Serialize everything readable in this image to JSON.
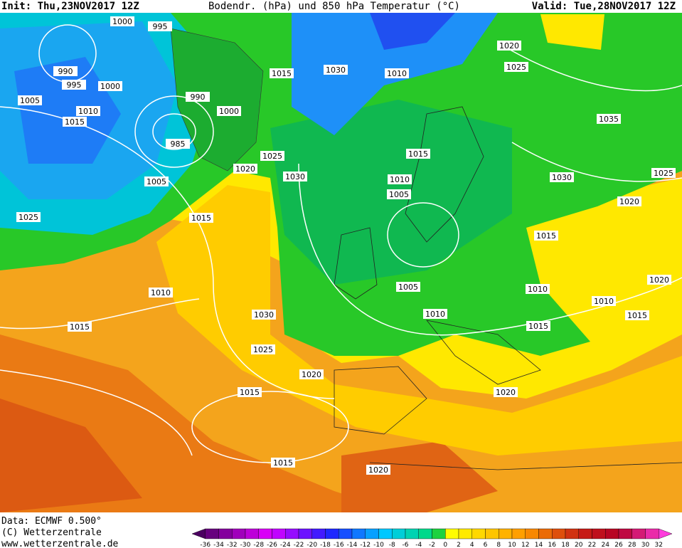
{
  "header": {
    "init": "Init: Thu,23NOV2017 12Z",
    "title": "Bodendr. (hPa) und 850 hPa Temperatur (°C)",
    "valid": "Valid: Tue,28NOV2017 12Z"
  },
  "footer": {
    "data": "Data: ECMWF   0.500°",
    "copyright": "(C) Wetterzentrale",
    "website": "www.wetterzentrale.de"
  },
  "isobar_labels": [
    "1000",
    "995",
    "990",
    "995",
    "1000",
    "1005",
    "1010",
    "1015",
    "990",
    "1000",
    "985",
    "1005",
    "1025",
    "1015",
    "1020",
    "1025",
    "1030",
    "1015",
    "1030",
    "1010",
    "1020",
    "1025",
    "1035",
    "1030",
    "1025",
    "1020",
    "1015",
    "1010",
    "1005",
    "1015",
    "1005",
    "1010",
    "1010",
    "1020",
    "1015",
    "1010",
    "1015",
    "1030",
    "1025",
    "1010",
    "1015",
    "1020",
    "1015",
    "1020",
    "1015",
    "1020"
  ],
  "color_scale": {
    "labels": [
      -36,
      -34,
      -32,
      -30,
      -28,
      -26,
      -24,
      -22,
      -20,
      -18,
      -16,
      -14,
      -12,
      -10,
      -8,
      -6,
      -4,
      -2,
      0,
      2,
      4,
      6,
      8,
      10,
      12,
      14,
      16,
      18,
      20,
      22,
      24,
      26,
      28,
      30,
      32
    ]
  }
}
